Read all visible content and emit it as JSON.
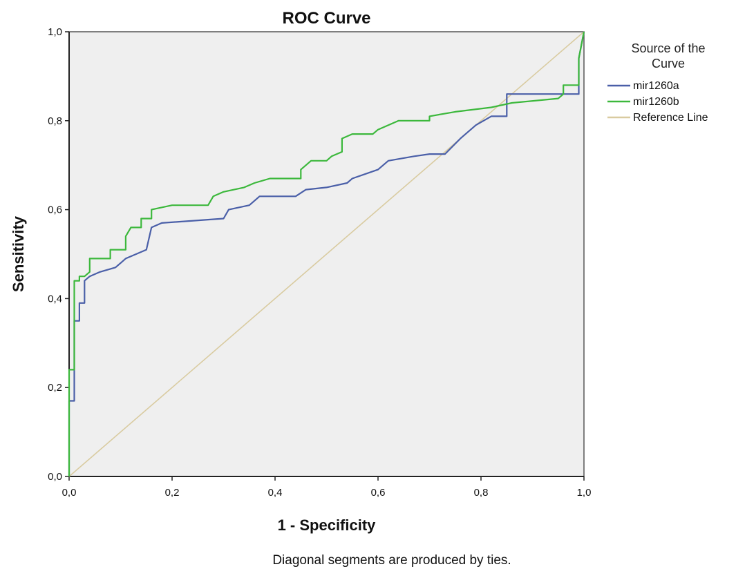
{
  "chart_data": {
    "type": "line",
    "title": "ROC Curve",
    "xlabel": "1 - Specificity",
    "ylabel": "Sensitivity",
    "xlim": [
      0,
      1
    ],
    "ylim": [
      0,
      1
    ],
    "x_ticks": [
      "0,0",
      "0,2",
      "0,4",
      "0,6",
      "0,8",
      "1,0"
    ],
    "y_ticks": [
      "0,0",
      "0,2",
      "0,4",
      "0,6",
      "0,8",
      "1,0"
    ],
    "grid": false,
    "legend_title": "Source of the Curve",
    "legend_position": "right",
    "footnote": "Diagonal segments are produced by ties.",
    "series": [
      {
        "name": "mir1260a",
        "color": "#4a5fa8",
        "points": [
          [
            0.0,
            0.0
          ],
          [
            0.0,
            0.17
          ],
          [
            0.01,
            0.17
          ],
          [
            0.01,
            0.35
          ],
          [
            0.02,
            0.35
          ],
          [
            0.02,
            0.39
          ],
          [
            0.03,
            0.39
          ],
          [
            0.03,
            0.44
          ],
          [
            0.04,
            0.45
          ],
          [
            0.06,
            0.46
          ],
          [
            0.09,
            0.47
          ],
          [
            0.1,
            0.48
          ],
          [
            0.11,
            0.49
          ],
          [
            0.13,
            0.5
          ],
          [
            0.15,
            0.51
          ],
          [
            0.16,
            0.56
          ],
          [
            0.18,
            0.57
          ],
          [
            0.3,
            0.58
          ],
          [
            0.31,
            0.6
          ],
          [
            0.35,
            0.61
          ],
          [
            0.37,
            0.63
          ],
          [
            0.44,
            0.63
          ],
          [
            0.46,
            0.645
          ],
          [
            0.5,
            0.65
          ],
          [
            0.54,
            0.66
          ],
          [
            0.55,
            0.67
          ],
          [
            0.6,
            0.69
          ],
          [
            0.62,
            0.71
          ],
          [
            0.67,
            0.72
          ],
          [
            0.7,
            0.725
          ],
          [
            0.73,
            0.725
          ],
          [
            0.76,
            0.76
          ],
          [
            0.79,
            0.79
          ],
          [
            0.82,
            0.81
          ],
          [
            0.85,
            0.81
          ],
          [
            0.85,
            0.86
          ],
          [
            0.99,
            0.86
          ],
          [
            0.99,
            0.94
          ],
          [
            1.0,
            1.0
          ]
        ]
      },
      {
        "name": "mir1260b",
        "color": "#3cb83c",
        "points": [
          [
            0.0,
            0.0
          ],
          [
            0.0,
            0.24
          ],
          [
            0.01,
            0.24
          ],
          [
            0.01,
            0.44
          ],
          [
            0.02,
            0.44
          ],
          [
            0.02,
            0.45
          ],
          [
            0.03,
            0.45
          ],
          [
            0.04,
            0.46
          ],
          [
            0.04,
            0.49
          ],
          [
            0.08,
            0.49
          ],
          [
            0.08,
            0.51
          ],
          [
            0.11,
            0.51
          ],
          [
            0.11,
            0.54
          ],
          [
            0.12,
            0.56
          ],
          [
            0.14,
            0.56
          ],
          [
            0.14,
            0.58
          ],
          [
            0.16,
            0.58
          ],
          [
            0.16,
            0.6
          ],
          [
            0.2,
            0.61
          ],
          [
            0.27,
            0.61
          ],
          [
            0.28,
            0.63
          ],
          [
            0.3,
            0.64
          ],
          [
            0.34,
            0.65
          ],
          [
            0.36,
            0.66
          ],
          [
            0.39,
            0.67
          ],
          [
            0.45,
            0.67
          ],
          [
            0.45,
            0.69
          ],
          [
            0.47,
            0.71
          ],
          [
            0.5,
            0.71
          ],
          [
            0.51,
            0.72
          ],
          [
            0.53,
            0.73
          ],
          [
            0.53,
            0.76
          ],
          [
            0.55,
            0.77
          ],
          [
            0.59,
            0.77
          ],
          [
            0.6,
            0.78
          ],
          [
            0.64,
            0.8
          ],
          [
            0.7,
            0.8
          ],
          [
            0.7,
            0.81
          ],
          [
            0.75,
            0.82
          ],
          [
            0.82,
            0.83
          ],
          [
            0.86,
            0.84
          ],
          [
            0.95,
            0.85
          ],
          [
            0.96,
            0.86
          ],
          [
            0.96,
            0.88
          ],
          [
            0.99,
            0.88
          ],
          [
            0.99,
            0.94
          ],
          [
            1.0,
            1.0
          ]
        ]
      },
      {
        "name": "Reference Line",
        "color": "#d9cba0",
        "points": [
          [
            0.0,
            0.0
          ],
          [
            1.0,
            1.0
          ]
        ]
      }
    ]
  }
}
